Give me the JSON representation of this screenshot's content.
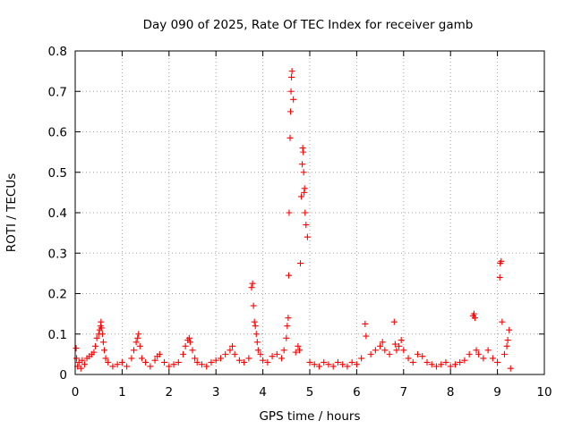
{
  "chart_data": {
    "type": "scatter",
    "title": "Day 090 of 2025, Rate Of TEC Index for receiver gamb",
    "xlabel": "GPS time / hours",
    "ylabel": "ROTI / TECUs",
    "xlim": [
      0,
      10
    ],
    "ylim": [
      0,
      0.8
    ],
    "x_ticks": [
      0,
      1,
      2,
      3,
      4,
      5,
      6,
      7,
      8,
      9,
      10
    ],
    "x_tick_labels": [
      "0",
      "1",
      "2",
      "3",
      "4",
      "5",
      "6",
      "7",
      "8",
      "9",
      "10"
    ],
    "y_ticks": [
      0,
      0.1,
      0.2,
      0.3,
      0.4,
      0.5,
      0.6,
      0.7,
      0.8
    ],
    "y_tick_labels": [
      "0",
      "0.1",
      "0.2",
      "0.3",
      "0.4",
      "0.5",
      "0.6",
      "0.7",
      "0.8"
    ],
    "grid": true,
    "marker": "+",
    "color": "#ff0000",
    "series": [
      {
        "name": "ROTI",
        "x": [
          0.02,
          0.03,
          0.05,
          0.08,
          0.12,
          0.15,
          0.2,
          0.25,
          0.3,
          0.35,
          0.4,
          0.43,
          0.46,
          0.5,
          0.52,
          0.54,
          0.55,
          0.56,
          0.58,
          0.6,
          0.62,
          0.65,
          0.7,
          0.8,
          0.9,
          1.0,
          1.1,
          1.2,
          1.25,
          1.3,
          1.33,
          1.35,
          1.38,
          1.42,
          1.5,
          1.6,
          1.7,
          1.75,
          1.8,
          1.9,
          2.0,
          2.1,
          2.2,
          2.3,
          2.35,
          2.4,
          2.43,
          2.45,
          2.5,
          2.55,
          2.6,
          2.7,
          2.8,
          2.9,
          3.0,
          3.1,
          3.2,
          3.3,
          3.35,
          3.4,
          3.5,
          3.6,
          3.7,
          3.76,
          3.78,
          3.8,
          3.82,
          3.84,
          3.86,
          3.88,
          3.9,
          3.95,
          4.0,
          4.1,
          4.2,
          4.3,
          4.4,
          4.45,
          4.5,
          4.52,
          4.54,
          4.55,
          4.56,
          4.58,
          4.59,
          4.6,
          4.61,
          4.62,
          4.65,
          4.7,
          4.75,
          4.78,
          4.8,
          4.82,
          4.84,
          4.85,
          4.86,
          4.87,
          4.88,
          4.89,
          4.9,
          4.92,
          4.95,
          5.0,
          5.1,
          5.2,
          5.3,
          5.4,
          5.5,
          5.6,
          5.7,
          5.8,
          5.9,
          6.0,
          6.1,
          6.18,
          6.2,
          6.3,
          6.4,
          6.5,
          6.55,
          6.6,
          6.7,
          6.8,
          6.82,
          6.85,
          6.9,
          6.95,
          7.0,
          7.1,
          7.2,
          7.3,
          7.4,
          7.5,
          7.6,
          7.7,
          7.8,
          7.9,
          8.0,
          8.1,
          8.2,
          8.3,
          8.4,
          8.48,
          8.5,
          8.52,
          8.55,
          8.6,
          8.7,
          8.8,
          8.9,
          9.0,
          9.05,
          9.06,
          9.08,
          9.1,
          9.15,
          9.2,
          9.22,
          9.25,
          9.28
        ],
        "y": [
          0.065,
          0.04,
          0.02,
          0.03,
          0.015,
          0.035,
          0.025,
          0.04,
          0.045,
          0.05,
          0.055,
          0.07,
          0.09,
          0.1,
          0.11,
          0.12,
          0.13,
          0.115,
          0.1,
          0.08,
          0.06,
          0.04,
          0.03,
          0.02,
          0.025,
          0.03,
          0.02,
          0.04,
          0.06,
          0.08,
          0.09,
          0.1,
          0.07,
          0.04,
          0.03,
          0.02,
          0.035,
          0.045,
          0.05,
          0.03,
          0.02,
          0.025,
          0.03,
          0.05,
          0.07,
          0.085,
          0.09,
          0.08,
          0.06,
          0.04,
          0.03,
          0.025,
          0.02,
          0.03,
          0.035,
          0.04,
          0.05,
          0.06,
          0.07,
          0.05,
          0.035,
          0.03,
          0.04,
          0.215,
          0.225,
          0.17,
          0.13,
          0.12,
          0.1,
          0.08,
          0.06,
          0.05,
          0.035,
          0.03,
          0.045,
          0.05,
          0.04,
          0.06,
          0.09,
          0.12,
          0.14,
          0.245,
          0.4,
          0.585,
          0.65,
          0.7,
          0.735,
          0.75,
          0.68,
          0.055,
          0.07,
          0.06,
          0.275,
          0.44,
          0.52,
          0.56,
          0.55,
          0.5,
          0.45,
          0.46,
          0.4,
          0.37,
          0.34,
          0.03,
          0.025,
          0.02,
          0.03,
          0.025,
          0.02,
          0.03,
          0.025,
          0.02,
          0.03,
          0.025,
          0.04,
          0.125,
          0.095,
          0.05,
          0.06,
          0.07,
          0.08,
          0.06,
          0.05,
          0.13,
          0.075,
          0.06,
          0.07,
          0.085,
          0.06,
          0.04,
          0.03,
          0.05,
          0.045,
          0.03,
          0.025,
          0.02,
          0.025,
          0.03,
          0.02,
          0.025,
          0.03,
          0.035,
          0.05,
          0.145,
          0.15,
          0.14,
          0.06,
          0.05,
          0.04,
          0.06,
          0.04,
          0.03,
          0.24,
          0.275,
          0.28,
          0.13,
          0.05,
          0.07,
          0.085,
          0.11,
          0.015
        ]
      }
    ]
  }
}
